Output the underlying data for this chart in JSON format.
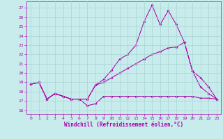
{
  "xlabel": "Windchill (Refroidissement éolien,°C)",
  "xlim": [
    -0.5,
    23.5
  ],
  "ylim": [
    15.6,
    27.7
  ],
  "yticks": [
    16,
    17,
    18,
    19,
    20,
    21,
    22,
    23,
    24,
    25,
    26,
    27
  ],
  "xticks": [
    0,
    1,
    2,
    3,
    4,
    5,
    6,
    7,
    8,
    9,
    10,
    11,
    12,
    13,
    14,
    15,
    16,
    17,
    18,
    19,
    20,
    21,
    22,
    23
  ],
  "bg_color": "#c8ecec",
  "grid_color": "#a8d4d4",
  "line_color": "#aa00aa",
  "line1_x": [
    0,
    1,
    2,
    3,
    4,
    5,
    6,
    7,
    8,
    9,
    10,
    11,
    12,
    13,
    14,
    15,
    16,
    17,
    18,
    19,
    20,
    21,
    22,
    23
  ],
  "line1_y": [
    18.8,
    19.0,
    17.2,
    17.8,
    17.5,
    17.2,
    17.2,
    16.5,
    16.7,
    17.5,
    17.5,
    17.5,
    17.5,
    17.5,
    17.5,
    17.5,
    17.5,
    17.5,
    17.5,
    17.5,
    17.5,
    17.3,
    17.3,
    17.2
  ],
  "line2_x": [
    0,
    1,
    2,
    3,
    4,
    5,
    6,
    7,
    8,
    9,
    10,
    11,
    12,
    13,
    14,
    15,
    16,
    17,
    18,
    19,
    20,
    21,
    22,
    23
  ],
  "line2_y": [
    18.8,
    19.0,
    17.2,
    17.8,
    17.5,
    17.2,
    17.2,
    17.2,
    18.7,
    19.3,
    20.3,
    21.5,
    22.0,
    23.0,
    25.5,
    27.3,
    25.2,
    26.7,
    25.2,
    23.3,
    20.2,
    18.5,
    17.8,
    17.2
  ],
  "line3_x": [
    0,
    1,
    2,
    3,
    4,
    5,
    6,
    7,
    8,
    9,
    10,
    11,
    12,
    13,
    14,
    15,
    16,
    17,
    18,
    19,
    20,
    21,
    22,
    23
  ],
  "line3_y": [
    18.8,
    19.0,
    17.2,
    17.8,
    17.5,
    17.2,
    17.2,
    17.2,
    18.7,
    19.0,
    19.5,
    20.0,
    20.5,
    21.0,
    21.5,
    22.0,
    22.3,
    22.7,
    22.8,
    23.3,
    20.2,
    19.5,
    18.5,
    17.2
  ]
}
